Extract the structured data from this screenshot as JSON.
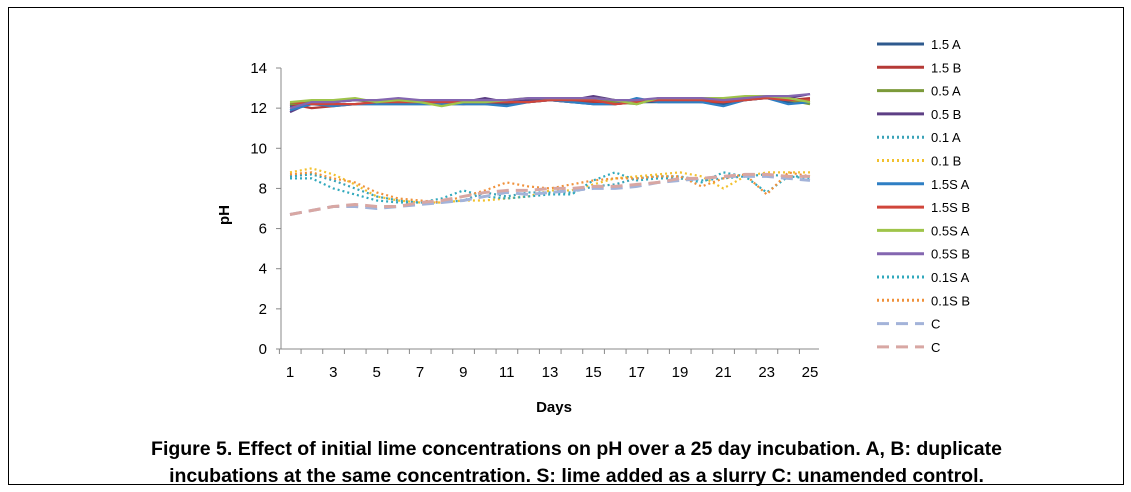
{
  "caption": {
    "line1": "Figure 5. Effect of initial lime concentrations on pH over a 25 day incubation. A, B: duplicate",
    "line2": "incubations at the same concentration. S: lime added as a slurry C: unamended control."
  },
  "chart_data": {
    "type": "line",
    "xlabel": "Days",
    "ylabel": "pH",
    "ylim": [
      0,
      14
    ],
    "yticks": [
      0,
      2,
      4,
      6,
      8,
      10,
      12,
      14
    ],
    "xlim": [
      1,
      25
    ],
    "xticks": [
      1,
      3,
      5,
      7,
      9,
      11,
      13,
      15,
      17,
      19,
      21,
      23,
      25
    ],
    "legend_position": "right",
    "grid": false,
    "x": [
      1,
      2,
      3,
      4,
      5,
      6,
      7,
      8,
      9,
      10,
      11,
      12,
      13,
      14,
      15,
      16,
      17,
      18,
      19,
      20,
      21,
      22,
      23,
      24,
      25
    ],
    "series": [
      {
        "name": "1.5 A",
        "color": "#2e5a8e",
        "dash": "solid",
        "values": [
          12.1,
          12.2,
          12.2,
          12.2,
          12.2,
          12.2,
          12.2,
          12.2,
          12.2,
          12.2,
          12.2,
          12.3,
          12.4,
          12.3,
          12.2,
          12.2,
          12.3,
          12.3,
          12.3,
          12.3,
          12.2,
          12.4,
          12.5,
          12.3,
          12.3
        ]
      },
      {
        "name": "1.5 B",
        "color": "#b53a36",
        "dash": "solid",
        "values": [
          12.2,
          12.0,
          12.1,
          12.2,
          12.3,
          12.3,
          12.3,
          12.3,
          12.2,
          12.3,
          12.3,
          12.3,
          12.4,
          12.3,
          12.3,
          12.2,
          12.3,
          12.4,
          12.4,
          12.3,
          12.3,
          12.4,
          12.5,
          12.4,
          12.5
        ]
      },
      {
        "name": "0.5 A",
        "color": "#7c9a3a",
        "dash": "solid",
        "values": [
          12.2,
          12.3,
          12.3,
          12.4,
          12.3,
          12.4,
          12.3,
          12.2,
          12.3,
          12.4,
          12.3,
          12.4,
          12.4,
          12.4,
          12.5,
          12.3,
          12.2,
          12.5,
          12.5,
          12.4,
          12.4,
          12.5,
          12.6,
          12.4,
          12.2
        ]
      },
      {
        "name": "0.5 B",
        "color": "#5d3f85",
        "dash": "solid",
        "values": [
          11.8,
          12.3,
          12.3,
          12.4,
          12.4,
          12.4,
          12.3,
          12.3,
          12.3,
          12.5,
          12.3,
          12.4,
          12.4,
          12.4,
          12.6,
          12.4,
          12.4,
          12.4,
          12.4,
          12.4,
          12.4,
          12.5,
          12.5,
          12.5,
          12.7
        ]
      },
      {
        "name": "0.1 A",
        "color": "#3aa3b8",
        "dash": "dotted",
        "values": [
          8.6,
          8.7,
          8.4,
          8.0,
          7.6,
          7.4,
          7.3,
          7.3,
          7.4,
          7.8,
          7.6,
          7.8,
          7.8,
          7.8,
          8.1,
          8.2,
          8.5,
          8.6,
          8.6,
          8.4,
          8.5,
          8.6,
          8.7,
          8.6,
          8.6
        ]
      },
      {
        "name": "0.1 B",
        "color": "#f2c12e",
        "dash": "dotted",
        "values": [
          8.8,
          9.0,
          8.7,
          8.2,
          7.6,
          7.4,
          7.3,
          7.3,
          7.4,
          7.4,
          7.5,
          7.6,
          7.9,
          7.9,
          8.2,
          8.5,
          8.6,
          8.7,
          8.8,
          8.6,
          8.0,
          8.6,
          8.8,
          8.8,
          8.8
        ]
      },
      {
        "name": "1.5S A",
        "color": "#2e7fc4",
        "dash": "solid",
        "values": [
          11.9,
          12.2,
          12.1,
          12.2,
          12.2,
          12.2,
          12.2,
          12.2,
          12.2,
          12.2,
          12.1,
          12.3,
          12.4,
          12.3,
          12.2,
          12.2,
          12.5,
          12.3,
          12.3,
          12.3,
          12.1,
          12.4,
          12.5,
          12.2,
          12.3
        ]
      },
      {
        "name": "1.5S B",
        "color": "#d0463b",
        "dash": "solid",
        "values": [
          12.3,
          12.2,
          12.2,
          12.2,
          12.3,
          12.3,
          12.3,
          12.3,
          12.3,
          12.3,
          12.3,
          12.3,
          12.4,
          12.4,
          12.4,
          12.2,
          12.3,
          12.4,
          12.4,
          12.4,
          12.3,
          12.4,
          12.5,
          12.4,
          12.4
        ]
      },
      {
        "name": "0.5S A",
        "color": "#9fc44a",
        "dash": "solid",
        "values": [
          12.3,
          12.4,
          12.4,
          12.5,
          12.3,
          12.4,
          12.3,
          12.1,
          12.3,
          12.3,
          12.4,
          12.5,
          12.5,
          12.5,
          12.5,
          12.4,
          12.2,
          12.5,
          12.5,
          12.5,
          12.5,
          12.6,
          12.6,
          12.5,
          12.3
        ]
      },
      {
        "name": "0.5S B",
        "color": "#8466b0",
        "dash": "solid",
        "values": [
          12.0,
          12.3,
          12.3,
          12.4,
          12.4,
          12.5,
          12.4,
          12.4,
          12.4,
          12.4,
          12.4,
          12.5,
          12.5,
          12.5,
          12.5,
          12.4,
          12.4,
          12.5,
          12.5,
          12.5,
          12.4,
          12.5,
          12.6,
          12.6,
          12.7
        ]
      },
      {
        "name": "0.1S A",
        "color": "#31a9bd",
        "dash": "dotted",
        "values": [
          8.5,
          8.5,
          8.0,
          7.7,
          7.4,
          7.3,
          7.3,
          7.5,
          7.9,
          7.6,
          7.5,
          7.6,
          7.7,
          7.7,
          8.4,
          8.8,
          8.4,
          8.5,
          8.5,
          8.3,
          8.8,
          8.6,
          7.8,
          8.6,
          8.5
        ]
      },
      {
        "name": "0.1S B",
        "color": "#f0913a",
        "dash": "dotted",
        "values": [
          8.7,
          8.8,
          8.5,
          8.3,
          7.8,
          7.5,
          7.4,
          7.3,
          7.6,
          7.9,
          8.3,
          8.1,
          8.0,
          8.2,
          8.4,
          8.5,
          8.5,
          8.6,
          8.6,
          8.1,
          8.5,
          8.7,
          7.7,
          8.8,
          8.6
        ]
      },
      {
        "name": "C",
        "color": "#a3b3d9",
        "dash": "dashed",
        "values": [
          6.7,
          6.9,
          7.1,
          7.1,
          7.0,
          7.1,
          7.2,
          7.3,
          7.4,
          7.6,
          7.8,
          7.7,
          7.8,
          7.9,
          8.0,
          8.0,
          8.1,
          8.3,
          8.4,
          8.5,
          8.6,
          8.6,
          8.6,
          8.5,
          8.4
        ]
      },
      {
        "name": "C",
        "color": "#d8a7a3",
        "dash": "dashed",
        "values": [
          6.7,
          6.9,
          7.1,
          7.2,
          7.1,
          7.1,
          7.3,
          7.4,
          7.6,
          7.8,
          7.9,
          7.9,
          8.0,
          8.0,
          8.1,
          8.1,
          8.2,
          8.3,
          8.5,
          8.5,
          8.6,
          8.7,
          8.7,
          8.6,
          8.6
        ]
      }
    ]
  }
}
